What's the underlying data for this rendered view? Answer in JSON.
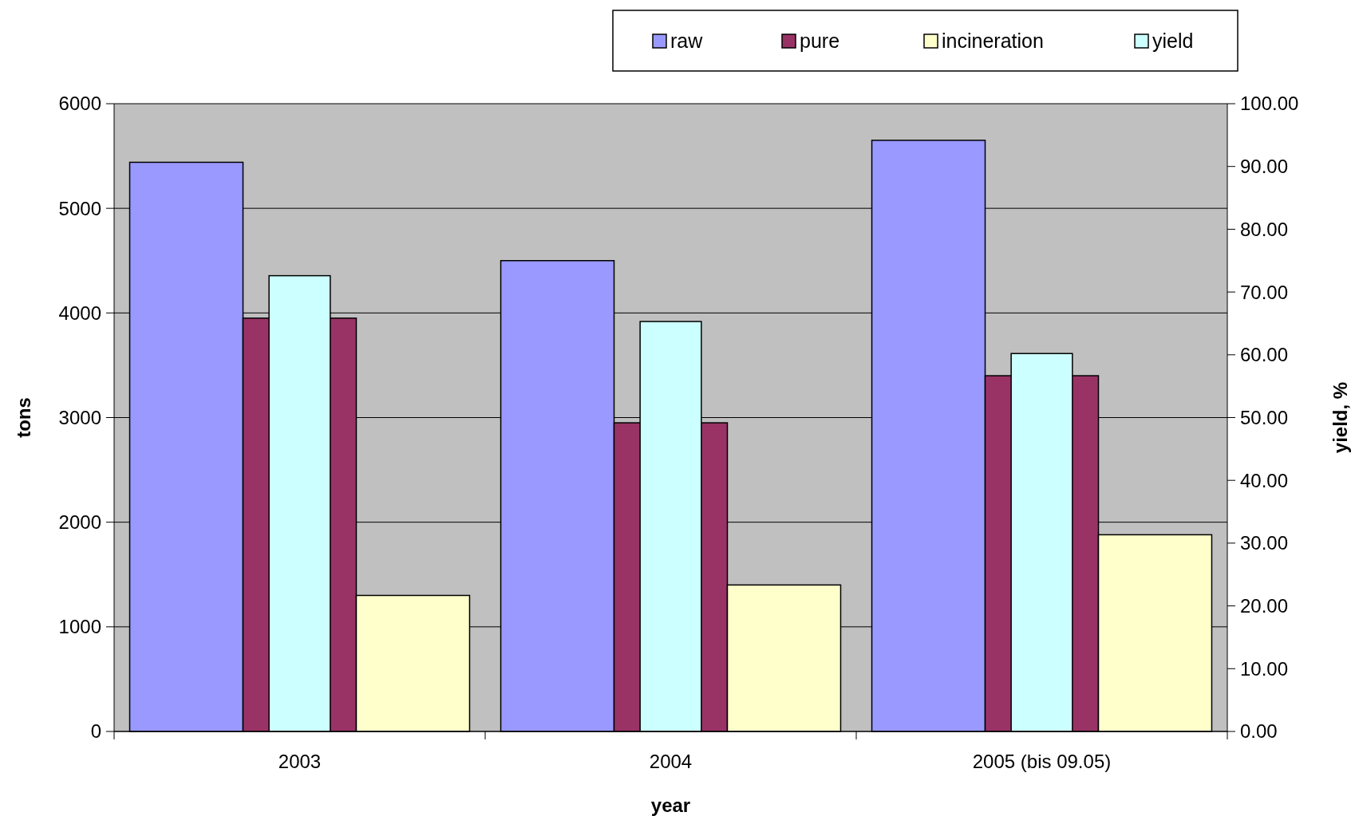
{
  "chart_data": {
    "type": "bar",
    "xlabel": "year",
    "ylabel": "tons",
    "y2label": "yield, %",
    "categories": [
      "2003",
      "2004",
      "2005 (bis 09.05)"
    ],
    "series": [
      {
        "name": "raw",
        "color": "#9999ff",
        "values": [
          5440,
          4500,
          5650
        ]
      },
      {
        "name": "pure",
        "color": "#993366",
        "values": [
          3950,
          2950,
          3400
        ]
      },
      {
        "name": "incineration",
        "color": "#ffffcc",
        "values": [
          1300,
          1400,
          1880
        ]
      },
      {
        "name": "yield",
        "color": "#ccffff",
        "values": [
          72.6,
          65.3,
          60.2
        ],
        "axis": "y2"
      }
    ],
    "ylim": [
      0,
      6000
    ],
    "yticks": [
      0,
      1000,
      2000,
      3000,
      4000,
      5000,
      6000
    ],
    "y2lim": [
      0,
      100
    ],
    "y2ticks": [
      {
        "value": 0,
        "label": "0.00"
      },
      {
        "value": 10,
        "label": "10.00"
      },
      {
        "value": 20,
        "label": "20.00"
      },
      {
        "value": 30,
        "label": "30.00"
      },
      {
        "value": 40,
        "label": "40.00"
      },
      {
        "value": 50,
        "label": "50.00"
      },
      {
        "value": 60,
        "label": "60.00"
      },
      {
        "value": 70,
        "label": "70.00"
      },
      {
        "value": 80,
        "label": "80.00"
      },
      {
        "value": 90,
        "label": "90.00"
      },
      {
        "value": 100,
        "label": "100.00"
      }
    ],
    "grid": "y",
    "legend": "top right"
  }
}
